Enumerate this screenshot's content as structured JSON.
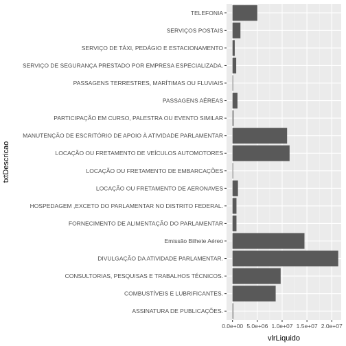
{
  "chart_data": {
    "type": "bar",
    "orientation": "horizontal",
    "xlabel": "vlrLiquido",
    "ylabel": "txtDescricao",
    "xlim": [
      -1200000,
      21900000
    ],
    "x_ticks": [
      0,
      5000000,
      10000000,
      15000000,
      20000000
    ],
    "x_tick_labels": [
      "0.0e+00",
      "5.0e+06",
      "1.0e+07",
      "1.5e+07",
      "2.0e+07"
    ],
    "grid": true,
    "legend": "none",
    "colors": {
      "panel": "#ebebeb",
      "grid_major": "#ffffff",
      "grid_minor": "#f5f5f5",
      "bar": "#595959"
    },
    "categories": [
      "TELEFONIA",
      "SERVIÇOS POSTAIS",
      "SERVIÇO DE TÁXI, PEDÁGIO E ESTACIONAMENTO",
      "SERVIÇO DE SEGURANÇA PRESTADO POR EMPRESA ESPECIALIZADA.",
      "PASSAGENS TERRESTRES, MARÍTIMAS OU FLUVIAIS",
      "PASSAGENS AÉREAS",
      "PARTICIPAÇÃO EM CURSO, PALESTRA OU EVENTO SIMILAR",
      "MANUTENÇÃO DE ESCRITÓRIO DE APOIO À ATIVIDADE PARLAMENTAR",
      "LOCAÇÃO OU FRETAMENTO DE VEÍCULOS AUTOMOTORES",
      "LOCAÇÃO OU FRETAMENTO DE EMBARCAÇÕES",
      "LOCAÇÃO OU FRETAMENTO DE AERONAVES",
      "HOSPEDAGEM ,EXCETO DO PARLAMENTAR NO DISTRITO FEDERAL.",
      "FORNECIMENTO DE ALIMENTAÇÃO DO PARLAMENTAR",
      "Emissão Bilhete Aéreo",
      "DIVULGAÇÃO DA ATIVIDADE PARLAMENTAR.",
      "CONSULTORIAS, PESQUISAS E TRABALHOS TÉCNICOS.",
      "COMBUSTÍVEIS E LUBRIFICANTES.",
      "ASSINATURA DE PUBLICAÇÕES."
    ],
    "values": [
      5000000,
      1600000,
      450000,
      750000,
      50000,
      1000000,
      200000,
      11000000,
      11500000,
      20000,
      1100000,
      800000,
      800000,
      14500000,
      21300000,
      9700000,
      8700000,
      150000
    ]
  }
}
